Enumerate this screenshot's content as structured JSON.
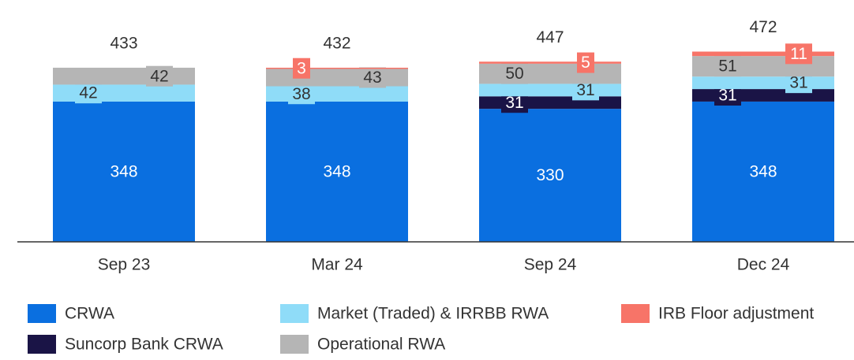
{
  "chart_data": {
    "type": "bar",
    "stacked": true,
    "categories": [
      "Sep 23",
      "Mar 24",
      "Sep 24",
      "Dec 24"
    ],
    "series": [
      {
        "name": "CRWA",
        "color": "#0a6fe0",
        "values": [
          348,
          348,
          330,
          348
        ]
      },
      {
        "name": "Suncorp Bank CRWA",
        "color": "#1a1446",
        "values": [
          null,
          null,
          31,
          31
        ]
      },
      {
        "name": "Market (Traded) & IRRBB RWA",
        "color": "#8fdcf8",
        "values": [
          42,
          38,
          31,
          31
        ]
      },
      {
        "name": "Operational RWA",
        "color": "#b5b5b5",
        "values": [
          42,
          43,
          50,
          51
        ]
      },
      {
        "name": "IRB Floor adjustment",
        "color": "#f77468",
        "values": [
          null,
          3,
          5,
          11
        ]
      }
    ],
    "totals": [
      433,
      432,
      447,
      472
    ],
    "ylim": [
      0,
      600
    ]
  }
}
